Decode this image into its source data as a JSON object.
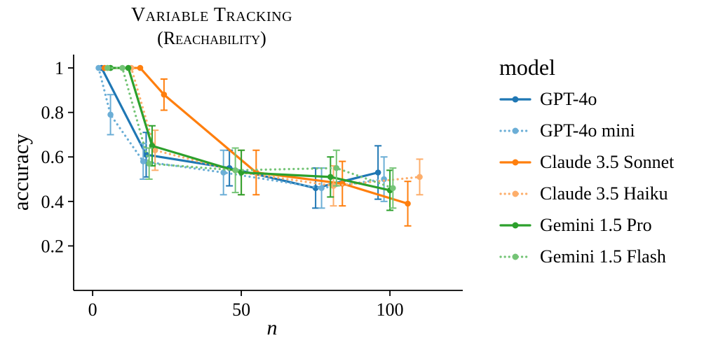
{
  "chart_data": {
    "type": "line",
    "title": "Variable Tracking (Reachability)",
    "title_line1": "Variable Tracking",
    "title_line2": "(Reachability)",
    "xlabel": "n",
    "ylabel": "accuracy",
    "legend_title": "model",
    "legend_position": "right of plot",
    "grid": false,
    "error_bars": true,
    "marker": "circle",
    "xlim": [
      -6.4,
      124.5
    ],
    "ylim": [
      0,
      1.06
    ],
    "xticks": [
      0,
      50,
      100
    ],
    "yticks": [
      0.2,
      0.4,
      0.6,
      0.8,
      1
    ],
    "ytick_labels": [
      "0.2",
      "0.4",
      "0.6",
      "0.8",
      "1"
    ],
    "series": [
      {
        "name": "GPT-4o",
        "color": "#1f77b4",
        "line_style": "solid",
        "x": [
          3,
          18,
          46,
          75,
          96
        ],
        "y": [
          1.0,
          0.61,
          0.55,
          0.46,
          0.53
        ],
        "yerr": [
          0,
          0.1,
          0.08,
          0.09,
          0.12
        ]
      },
      {
        "name": "GPT-4o mini",
        "color": "#6baed6",
        "line_style": "dotted",
        "x": [
          2,
          6,
          17,
          44,
          77,
          98
        ],
        "y": [
          1.0,
          0.79,
          0.58,
          0.53,
          0.46,
          0.5
        ],
        "yerr": [
          0,
          0.09,
          0.08,
          0.1,
          0.09,
          0.1
        ]
      },
      {
        "name": "Claude 3.5 Sonnet",
        "color": "#ff7f0e",
        "line_style": "solid",
        "x": [
          4,
          16,
          24,
          55,
          84,
          106
        ],
        "y": [
          1.0,
          1.0,
          0.88,
          0.53,
          0.48,
          0.39
        ],
        "yerr": [
          0,
          0,
          0.07,
          0.1,
          0.1,
          0.1
        ]
      },
      {
        "name": "Claude 3.5 Haiku",
        "color": "#fdae6b",
        "line_style": "dotted",
        "x": [
          5,
          13,
          21,
          50,
          81,
          110
        ],
        "y": [
          1.0,
          1.0,
          0.63,
          0.53,
          0.47,
          0.51
        ],
        "yerr": [
          0,
          0,
          0.09,
          0.1,
          0.09,
          0.08
        ]
      },
      {
        "name": "Gemini 1.5 Pro",
        "color": "#2ca02c",
        "line_style": "solid",
        "x": [
          6,
          12,
          20,
          50,
          80,
          100
        ],
        "y": [
          1.0,
          1.0,
          0.65,
          0.53,
          0.51,
          0.45
        ],
        "yerr": [
          0,
          0,
          0.09,
          0.1,
          0.09,
          0.09
        ]
      },
      {
        "name": "Gemini 1.5 Flash",
        "color": "#74c476",
        "line_style": "dotted",
        "x": [
          5,
          10,
          19,
          48,
          82,
          101
        ],
        "y": [
          1.0,
          1.0,
          0.57,
          0.54,
          0.55,
          0.46
        ],
        "yerr": [
          0,
          0,
          0.07,
          0.1,
          0.08,
          0.09
        ]
      }
    ]
  }
}
